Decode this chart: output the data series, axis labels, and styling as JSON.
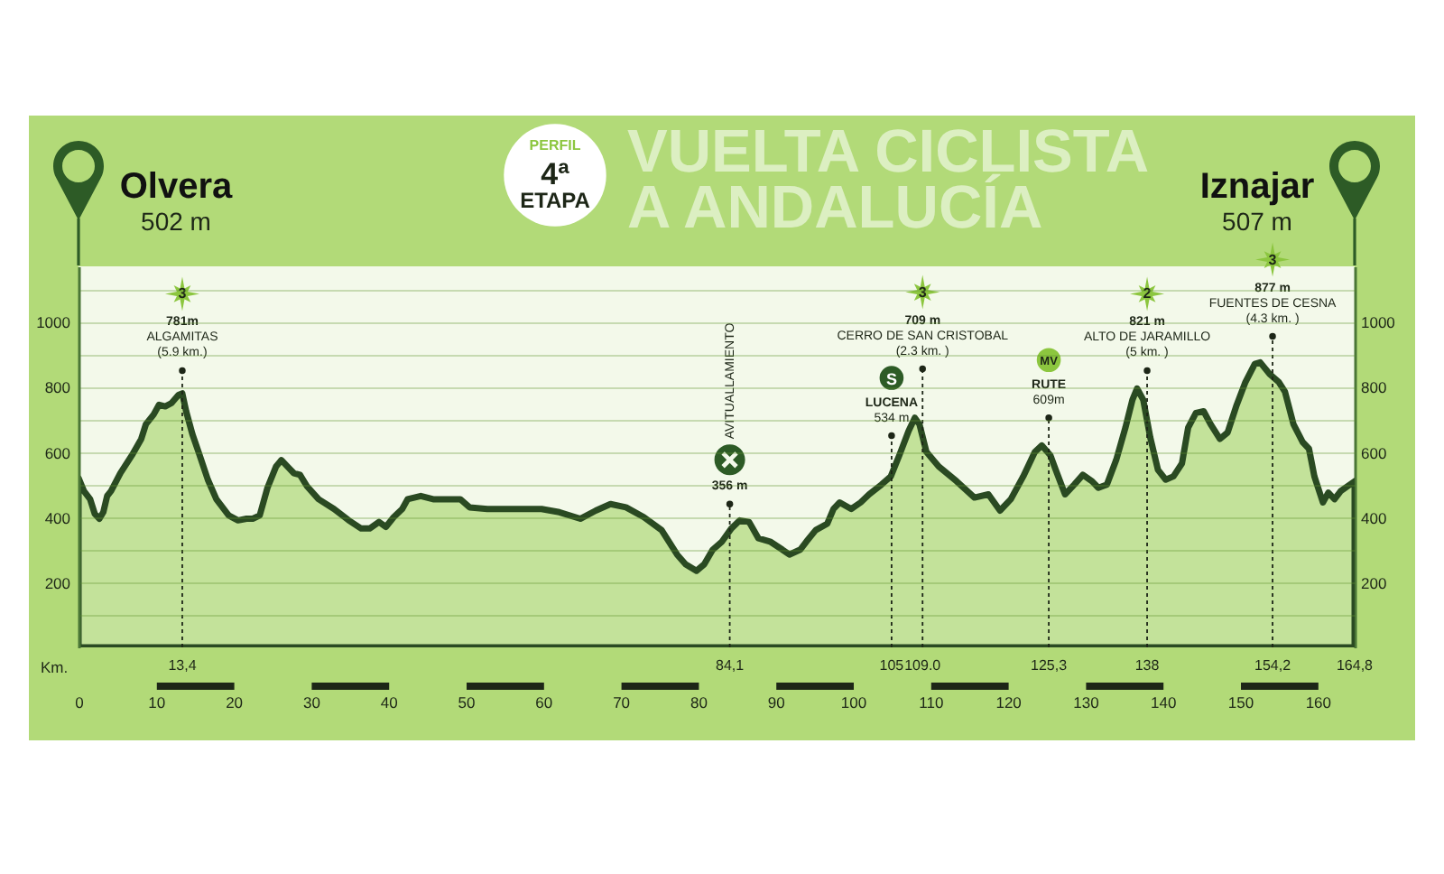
{
  "chart_data": {
    "type": "area",
    "title": "PERFIL\n4ª\nETAPA",
    "subtitle": "VUELTA CICLISTA\nA ANDALUCÍA",
    "xlabel": "Km.",
    "x": [
      0,
      0.7,
      1.5,
      2.1,
      2.7,
      3.2,
      3.7,
      4.2,
      5.4,
      6.9,
      8.1,
      8.7,
      9.7,
      10.4,
      11.2,
      12,
      12.9,
      13.4,
      13.9,
      14.7,
      15.5,
      16.7,
      17.8,
      19.4,
      20.6,
      21.7,
      22.5,
      23.4,
      24.4,
      25.5,
      26.2,
      27,
      27.8,
      28.6,
      29.5,
      31,
      33,
      34.9,
      36.5,
      37.6,
      38.8,
      39.7,
      40.7,
      41.8,
      42.5,
      44.2,
      45.8,
      49.3,
      50.5,
      52.8,
      57.5,
      59.8,
      62.1,
      64.8,
      66.8,
      68.7,
      70.7,
      73,
      75.3,
      77.3,
      78.4,
      79.8,
      80.8,
      81.9,
      83.1,
      84.3,
      85.4,
      86.6,
      87.8,
      89.3,
      90.9,
      91.8,
      93.2,
      94,
      95.2,
      96.7,
      97.5,
      98.3,
      99.8,
      101,
      102.1,
      103.7,
      104.9,
      106,
      107.2,
      108,
      108.6,
      109.5,
      111.1,
      113.4,
      115.7,
      117.5,
      119,
      120.4,
      122,
      123.5,
      124.4,
      125.5,
      126.2,
      127.4,
      128.6,
      129.7,
      130.9,
      131.7,
      132.8,
      134,
      135.2,
      136.1,
      136.7,
      137.5,
      138.4,
      139.4,
      140.4,
      141.4,
      142.5,
      143.3,
      144.3,
      145.3,
      146.2,
      147.4,
      148.4,
      149.5,
      150.7,
      151.9,
      152.6,
      153.8,
      155,
      155.8,
      156.9,
      158.1,
      158.9,
      159.6,
      160.7,
      161.4,
      162.2,
      163,
      164.8
    ],
    "values": [
      520,
      480,
      455,
      410,
      395,
      415,
      465,
      480,
      535,
      590,
      640,
      685,
      715,
      745,
      740,
      750,
      775,
      780,
      725,
      655,
      600,
      515,
      455,
      405,
      390,
      395,
      395,
      405,
      490,
      555,
      575,
      555,
      535,
      530,
      495,
      455,
      425,
      390,
      365,
      365,
      385,
      370,
      400,
      425,
      455,
      465,
      455,
      455,
      430,
      425,
      425,
      425,
      415,
      395,
      420,
      440,
      430,
      400,
      360,
      285,
      255,
      235,
      255,
      300,
      325,
      365,
      390,
      385,
      335,
      325,
      300,
      285,
      300,
      325,
      360,
      380,
      425,
      445,
      425,
      445,
      470,
      500,
      525,
      590,
      665,
      705,
      685,
      600,
      555,
      510,
      460,
      470,
      420,
      455,
      525,
      600,
      620,
      590,
      545,
      470,
      500,
      530,
      510,
      490,
      500,
      575,
      675,
      760,
      795,
      760,
      645,
      545,
      515,
      525,
      565,
      675,
      720,
      725,
      685,
      640,
      660,
      740,
      815,
      870,
      875,
      840,
      815,
      785,
      685,
      630,
      610,
      525,
      445,
      475,
      455,
      480,
      510
    ],
    "color": "#c3e29a",
    "xlim": [
      0,
      164.8
    ],
    "xticks": [
      0,
      10,
      20,
      30,
      40,
      50,
      60,
      70,
      80,
      90,
      100,
      110,
      120,
      130,
      140,
      150,
      160
    ],
    "ylim": [
      0,
      1170
    ],
    "yticks": [
      {
        "value": 100,
        "label": null
      },
      200,
      {
        "value": 300,
        "label": null
      },
      400,
      {
        "value": 500,
        "label": null
      },
      600,
      {
        "value": 700,
        "label": null
      },
      800,
      {
        "value": 900,
        "label": null
      },
      1000,
      {
        "value": 1100,
        "label": null
      }
    ],
    "y2lim": [
      0,
      1170
    ],
    "y2ticks": [
      200,
      400,
      600,
      800,
      1000
    ],
    "grid": "y",
    "ref_lines": [
      {
        "axis": "x",
        "value": 13.4,
        "label": "13,4",
        "line_style": "dashed"
      },
      {
        "axis": "x",
        "value": 84.1,
        "label": "84,1",
        "line_style": "dashed"
      },
      {
        "axis": "x",
        "value": 105,
        "label": "105",
        "line_style": "dashed"
      },
      {
        "axis": "x",
        "value": 109,
        "label": "109.0",
        "line_style": "dashed"
      },
      {
        "axis": "x",
        "value": 125.3,
        "label": "125,3",
        "line_style": "dashed"
      },
      {
        "axis": "x",
        "value": 138,
        "label": "138",
        "line_style": "dashed"
      },
      {
        "axis": "x",
        "value": 154.2,
        "label": "154,2",
        "line_style": "dashed"
      }
    ],
    "annotations": [
      "Olvera\n502 m",
      "Iznajar\n507 m",
      "AVITUALLAMIENTO",
      {
        "text": "3\n781m\nALGAMITAS\n(5.9 km.)",
        "x": 13.4,
        "y": 850
      },
      {
        "text": "356 m",
        "x": 84.1,
        "y": 440
      },
      {
        "text": "S\nLUCENA\n534 m",
        "x": 105,
        "y": 650
      },
      {
        "text": "3\n709 m\nCERRO DE SAN CRISTOBAL\n(2.3 km. )",
        "x": 109,
        "y": 855
      },
      {
        "text": "MV\nRUTE\n609m",
        "x": 125.3,
        "y": 705
      },
      {
        "text": "2\n821 m\nALTO DE JARAMILLO\n(5 km. )",
        "x": 138,
        "y": 850
      },
      {
        "text": "3\n877 m\nFUENTES DE CESNA\n(4.3 km. )",
        "x": 154.2,
        "y": 955
      },
      "164,8"
    ]
  }
}
